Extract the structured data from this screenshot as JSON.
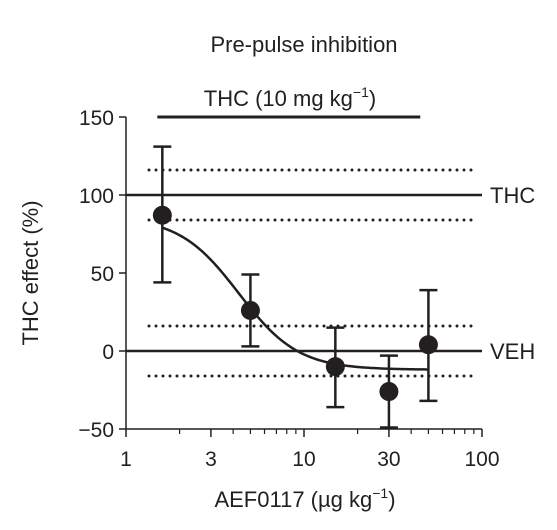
{
  "chart_data": {
    "type": "scatter",
    "title": "Pre-pulse inhibition",
    "xlabel": "AEF0117 (µg kg",
    "xlabel_sup": "−1",
    "xlabel_close": ")",
    "ylabel": "THC effect (%)",
    "x_scale": "log",
    "xlim": [
      1,
      100
    ],
    "ylim": [
      -50,
      150
    ],
    "x_ticks": [
      {
        "value": 1,
        "label": "1"
      },
      {
        "value": 3,
        "label": "3"
      },
      {
        "value": 10,
        "label": "10"
      },
      {
        "value": 30,
        "label": "30"
      },
      {
        "value": 100,
        "label": "100"
      }
    ],
    "y_ticks": [
      {
        "value": -50,
        "label": "−50"
      },
      {
        "value": 0,
        "label": "0"
      },
      {
        "value": 50,
        "label": "50"
      },
      {
        "value": 100,
        "label": "100"
      },
      {
        "value": 150,
        "label": "150"
      }
    ],
    "treatment_bar": {
      "label": "THC (10 mg kg",
      "label_sup": "−1",
      "label_close": ")",
      "value": 150,
      "x_range": [
        1.5,
        45
      ]
    },
    "reference_lines": [
      {
        "label": "THC",
        "value": 100,
        "band": [
          84,
          116
        ]
      },
      {
        "label": "VEH",
        "value": 0,
        "band": [
          -16,
          16
        ]
      }
    ],
    "points": [
      {
        "x": 1.6,
        "y": 87,
        "err_low": 44,
        "err_high": 131
      },
      {
        "x": 5,
        "y": 26,
        "err_low": 3,
        "err_high": 49
      },
      {
        "x": 15,
        "y": -10,
        "err_low": -36,
        "err_high": 15
      },
      {
        "x": 30,
        "y": -26,
        "err_low": -49,
        "err_high": -3
      },
      {
        "x": 50,
        "y": 4,
        "err_low": -32,
        "err_high": 39
      }
    ],
    "fit": {
      "type": "sigmoid",
      "top": 86,
      "bottom": -12,
      "x50": 4.3,
      "hill": 2.6,
      "x_range": [
        1.6,
        50
      ]
    },
    "grid": false,
    "legend": "none"
  }
}
